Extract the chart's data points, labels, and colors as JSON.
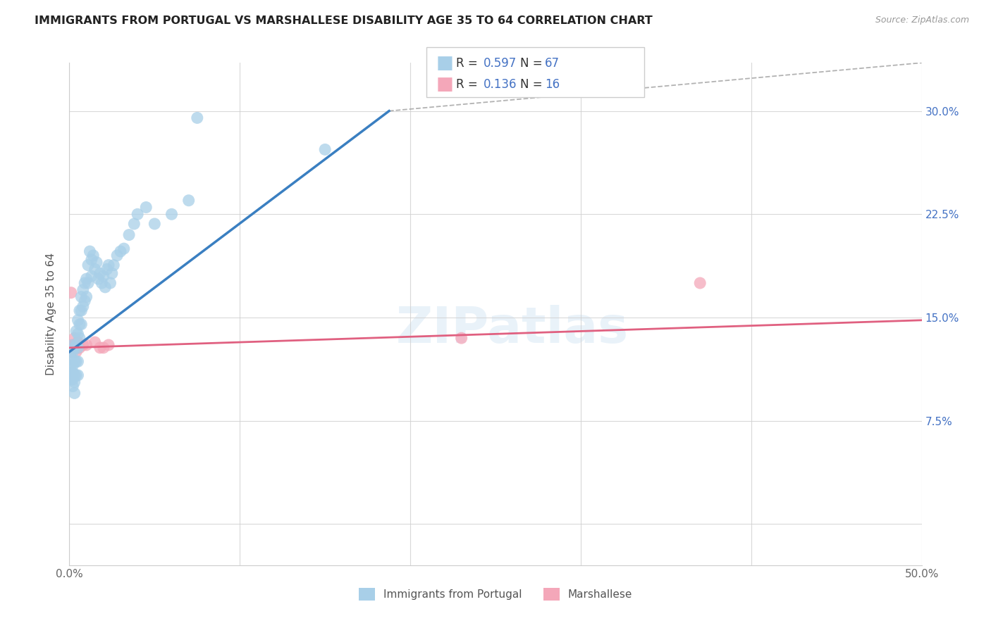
{
  "title": "IMMIGRANTS FROM PORTUGAL VS MARSHALLESE DISABILITY AGE 35 TO 64 CORRELATION CHART",
  "source": "Source: ZipAtlas.com",
  "ylabel": "Disability Age 35 to 64",
  "xlim": [
    0.0,
    0.5
  ],
  "ylim": [
    -0.03,
    0.335
  ],
  "blue_color": "#a8cfe8",
  "blue_line_color": "#3a7fc1",
  "pink_color": "#f4a7b9",
  "pink_line_color": "#e06080",
  "accent_color": "#4472c4",
  "legend_label1": "Immigrants from Portugal",
  "legend_label2": "Marshallese",
  "watermark": "ZIPatlas",
  "blue_scatter_x": [
    0.001,
    0.001,
    0.001,
    0.001,
    0.001,
    0.002,
    0.002,
    0.002,
    0.002,
    0.002,
    0.002,
    0.003,
    0.003,
    0.003,
    0.003,
    0.003,
    0.004,
    0.004,
    0.004,
    0.004,
    0.005,
    0.005,
    0.005,
    0.005,
    0.005,
    0.006,
    0.006,
    0.006,
    0.007,
    0.007,
    0.007,
    0.008,
    0.008,
    0.009,
    0.009,
    0.01,
    0.01,
    0.011,
    0.011,
    0.012,
    0.013,
    0.013,
    0.014,
    0.015,
    0.016,
    0.017,
    0.018,
    0.019,
    0.02,
    0.021,
    0.022,
    0.023,
    0.024,
    0.025,
    0.026,
    0.028,
    0.03,
    0.032,
    0.035,
    0.038,
    0.04,
    0.045,
    0.05,
    0.06,
    0.07,
    0.075,
    0.15
  ],
  "blue_scatter_y": [
    0.125,
    0.12,
    0.115,
    0.11,
    0.105,
    0.13,
    0.125,
    0.115,
    0.11,
    0.105,
    0.1,
    0.128,
    0.118,
    0.108,
    0.103,
    0.095,
    0.14,
    0.13,
    0.118,
    0.108,
    0.148,
    0.138,
    0.128,
    0.118,
    0.108,
    0.155,
    0.145,
    0.135,
    0.165,
    0.155,
    0.145,
    0.17,
    0.158,
    0.175,
    0.162,
    0.178,
    0.165,
    0.188,
    0.175,
    0.198,
    0.192,
    0.18,
    0.195,
    0.185,
    0.19,
    0.178,
    0.182,
    0.175,
    0.18,
    0.172,
    0.185,
    0.188,
    0.175,
    0.182,
    0.188,
    0.195,
    0.198,
    0.2,
    0.21,
    0.218,
    0.225,
    0.23,
    0.218,
    0.225,
    0.235,
    0.295,
    0.272
  ],
  "pink_scatter_x": [
    0.001,
    0.001,
    0.002,
    0.002,
    0.003,
    0.004,
    0.005,
    0.006,
    0.008,
    0.01,
    0.015,
    0.018,
    0.02,
    0.023,
    0.23,
    0.37
  ],
  "pink_scatter_y": [
    0.125,
    0.168,
    0.13,
    0.128,
    0.135,
    0.125,
    0.132,
    0.128,
    0.13,
    0.13,
    0.132,
    0.128,
    0.128,
    0.13,
    0.135,
    0.175
  ]
}
